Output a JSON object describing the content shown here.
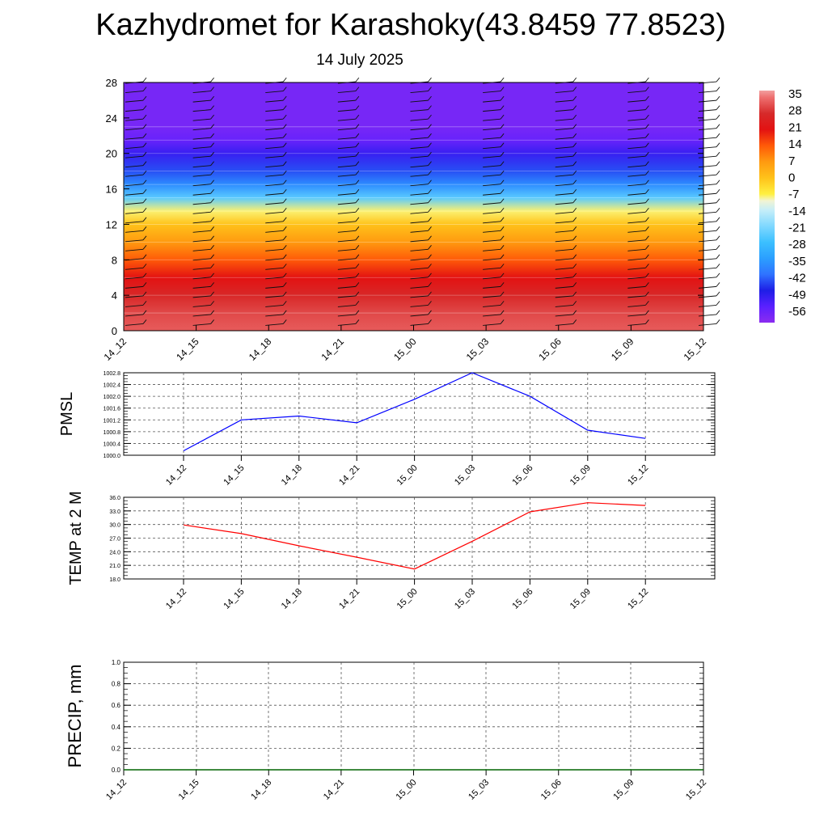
{
  "header": {
    "title": "Kazhydromet for Karashoky(43.8459 77.8523)",
    "subtitle": "14 July 2025"
  },
  "chart_data": [
    {
      "type": "heatmap",
      "name": "temperature-height-section",
      "title": "",
      "x_categories": [
        "14_12",
        "14_15",
        "14_18",
        "14_21",
        "15_00",
        "15_03",
        "15_06",
        "15_09",
        "15_12"
      ],
      "y_ticks": [
        0,
        4,
        8,
        12,
        16,
        20,
        24,
        28
      ],
      "ylim": [
        0,
        28
      ],
      "profile": [
        {
          "y": 0,
          "value": 33
        },
        {
          "y": 2,
          "value": 31
        },
        {
          "y": 4,
          "value": 27
        },
        {
          "y": 6,
          "value": 21
        },
        {
          "y": 8,
          "value": 14
        },
        {
          "y": 10,
          "value": 7
        },
        {
          "y": 12,
          "value": 0
        },
        {
          "y": 13.5,
          "value": -8
        },
        {
          "y": 15,
          "value": -25
        },
        {
          "y": 16.5,
          "value": -38
        },
        {
          "y": 18,
          "value": -45
        },
        {
          "y": 20,
          "value": -52
        },
        {
          "y": 21.5,
          "value": -58
        },
        {
          "y": 23,
          "value": -60
        },
        {
          "y": 28,
          "value": -60
        }
      ],
      "colorbar": {
        "labels": [
          "35",
          "28",
          "21",
          "14",
          "7",
          "0",
          "-7",
          "-14",
          "-21",
          "-28",
          "-35",
          "-42",
          "-49",
          "-56"
        ],
        "range": [
          -63,
          38
        ]
      },
      "wind_barbs": true
    },
    {
      "type": "line",
      "name": "pmsl",
      "ylabel": "PMSL",
      "x_categories": [
        "14_12",
        "14_15",
        "14_18",
        "14_21",
        "15_00",
        "15_03",
        "15_06",
        "15_09",
        "15_12"
      ],
      "y_ticks": [
        "1000.0",
        "1000.4",
        "1000.8",
        "1001.2",
        "1001.6",
        "1002.0",
        "1002.4",
        "1002.8"
      ],
      "ylim": [
        1000.0,
        1002.8
      ],
      "series": [
        {
          "values": [
            1000.15,
            1001.2,
            1001.33,
            1001.1,
            1001.9,
            1002.8,
            1002.0,
            1000.85,
            1000.57
          ],
          "color": "#0000ff"
        }
      ],
      "grid": true
    },
    {
      "type": "line",
      "name": "temp-2m",
      "ylabel": "TEMP at 2 M",
      "x_categories": [
        "14_12",
        "14_15",
        "14_18",
        "14_21",
        "15_00",
        "15_03",
        "15_06",
        "15_09",
        "15_12"
      ],
      "y_ticks": [
        "18.0",
        "21.0",
        "24.0",
        "27.0",
        "30.0",
        "33.0",
        "36.0"
      ],
      "ylim": [
        18.0,
        36.0
      ],
      "series": [
        {
          "values": [
            29.9,
            28.0,
            25.3,
            22.8,
            20.2,
            26.3,
            32.8,
            34.8,
            34.2
          ],
          "color": "#ff0000"
        }
      ],
      "grid": true
    },
    {
      "type": "line",
      "name": "precip",
      "ylabel": "PRECIP, mm",
      "x_categories": [
        "14_12",
        "14_15",
        "14_18",
        "14_21",
        "15_00",
        "15_03",
        "15_06",
        "15_09",
        "15_12"
      ],
      "y_ticks": [
        "0.0",
        "0.2",
        "0.4",
        "0.6",
        "0.8",
        "1.0"
      ],
      "ylim": [
        0.0,
        1.0
      ],
      "series": [
        {
          "values": [
            0,
            0,
            0,
            0,
            0,
            0,
            0,
            0,
            0
          ],
          "color": "#006400"
        }
      ],
      "grid": true
    }
  ]
}
